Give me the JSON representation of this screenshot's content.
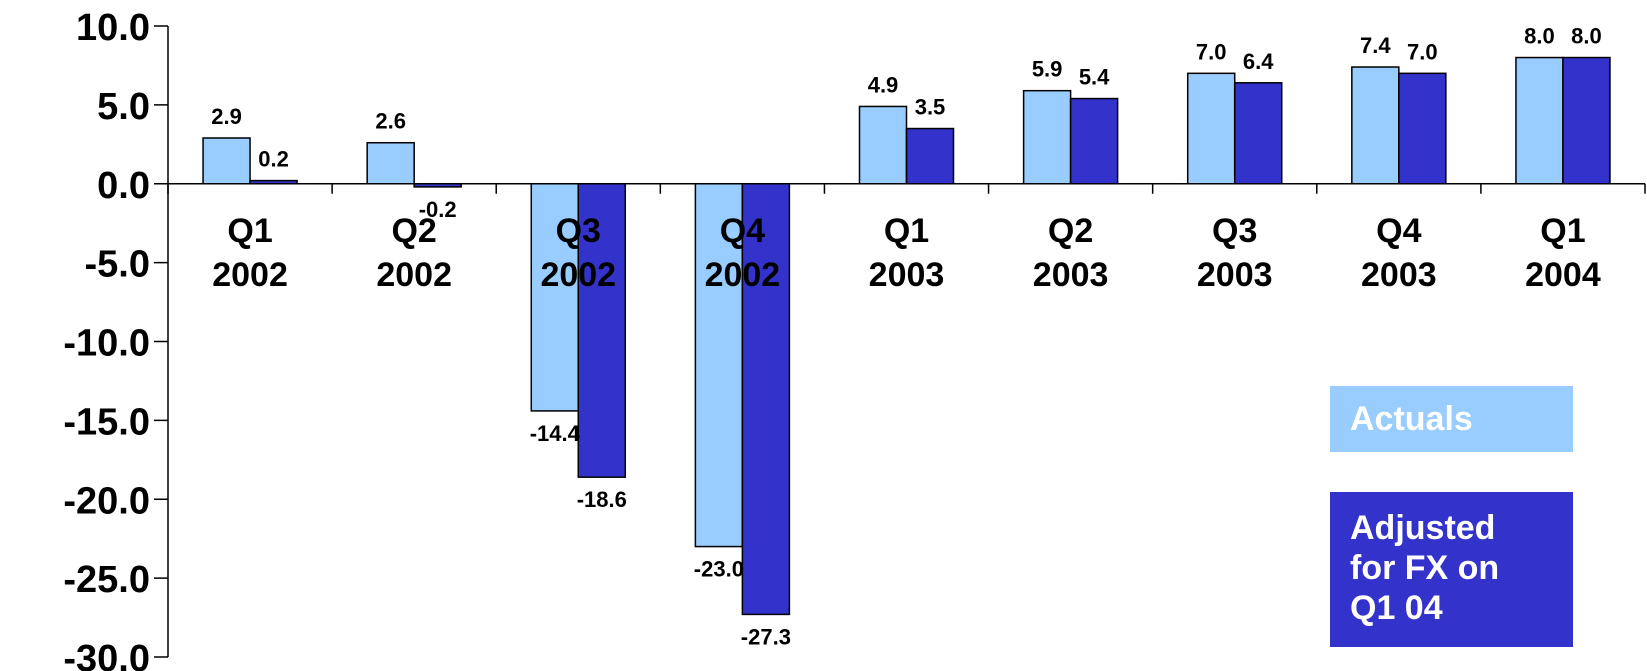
{
  "chart_data": {
    "type": "bar",
    "categories": [
      [
        "Q1",
        "2002"
      ],
      [
        "Q2",
        "2002"
      ],
      [
        "Q3",
        "2002"
      ],
      [
        "Q4",
        "2002"
      ],
      [
        "Q1",
        "2003"
      ],
      [
        "Q2",
        "2003"
      ],
      [
        "Q3",
        "2003"
      ],
      [
        "Q4",
        "2003"
      ],
      [
        "Q1",
        "2004"
      ]
    ],
    "series": [
      {
        "name": "Actuals",
        "color": "#99CCFF",
        "values": [
          2.9,
          2.6,
          -14.4,
          -23.0,
          4.9,
          5.9,
          7.0,
          7.4,
          8.0
        ],
        "labels": [
          "2.9",
          "2.6",
          "-14.4",
          "-23.0",
          "4.9",
          "5.9",
          "7.0",
          "7.4",
          "8.0"
        ]
      },
      {
        "name": "Adjusted for FX on Q1 04",
        "color": "#3333CC",
        "values": [
          0.2,
          -0.2,
          -18.6,
          -27.3,
          3.5,
          5.4,
          6.4,
          7.0,
          8.0
        ],
        "labels": [
          "0.2",
          "-0.2",
          "-18.6",
          "-27.3",
          "3.5",
          "5.4",
          "6.4",
          "7.0",
          "8.0"
        ]
      }
    ],
    "ylim": [
      -30,
      10
    ],
    "yticks": [
      10,
      5,
      0,
      -5,
      -10,
      -15,
      -20,
      -25,
      -30
    ],
    "ytick_labels": [
      "10.0",
      "5.0",
      "0.0",
      "-5.0",
      "-10.0",
      "-15.0",
      "-20.0",
      "-25.0",
      "-30.0"
    ],
    "title": "",
    "xlabel": "",
    "ylabel": "",
    "grid": false,
    "legend_position": "bottom-right"
  },
  "legend": {
    "actuals_label": "Actuals",
    "adjusted_label": "Adjusted\nfor FX on\nQ1 04",
    "actuals_color": "#99CCFF",
    "adjusted_color": "#3333CC"
  }
}
